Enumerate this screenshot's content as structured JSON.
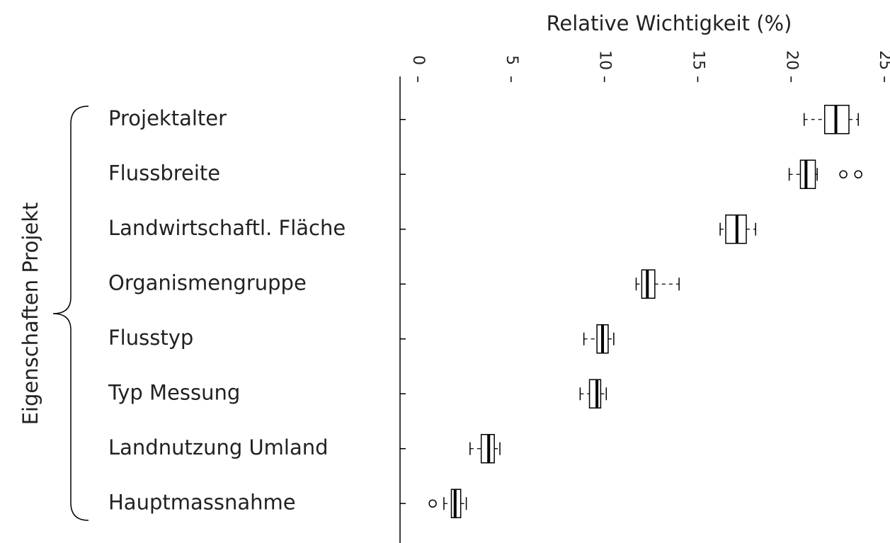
{
  "chart_data": {
    "type": "boxplot",
    "orientation": "horizontal",
    "x_label": "Relative Wichtigkeit (%)",
    "y_label": "Eigenschaften Projekt",
    "categories": [
      "Projektalter",
      "Flussbreite",
      "Landwirtschaftl. Fläche",
      "Organismengruppe",
      "Flusstyp",
      "Typ Messung",
      "Landnutzung Umland",
      "Hauptmassnahme"
    ],
    "stats": [
      {
        "min": 20.7,
        "q1": 21.8,
        "median": 22.4,
        "q3": 23.1,
        "max": 23.6,
        "outliers": []
      },
      {
        "min": 19.9,
        "q1": 20.5,
        "median": 20.8,
        "q3": 21.3,
        "max": 21.4,
        "outliers": [
          22.8,
          23.6
        ]
      },
      {
        "min": 16.2,
        "q1": 16.5,
        "median": 17.1,
        "q3": 17.6,
        "max": 18.1,
        "outliers": []
      },
      {
        "min": 11.7,
        "q1": 12.0,
        "median": 12.3,
        "q3": 12.7,
        "max": 14.0,
        "outliers": []
      },
      {
        "min": 8.9,
        "q1": 9.6,
        "median": 9.9,
        "q3": 10.2,
        "max": 10.5,
        "outliers": []
      },
      {
        "min": 8.7,
        "q1": 9.2,
        "median": 9.6,
        "q3": 9.8,
        "max": 10.1,
        "outliers": []
      },
      {
        "min": 2.8,
        "q1": 3.4,
        "median": 3.8,
        "q3": 4.1,
        "max": 4.4,
        "outliers": []
      },
      {
        "min": 1.4,
        "q1": 1.8,
        "median": 2.0,
        "q3": 2.3,
        "max": 2.6,
        "outliers": [
          0.8
        ]
      }
    ],
    "color": "#000000",
    "xlim": [
      -0.95,
      25.3
    ],
    "xticks": [
      0,
      5,
      10,
      15,
      20,
      25
    ]
  }
}
